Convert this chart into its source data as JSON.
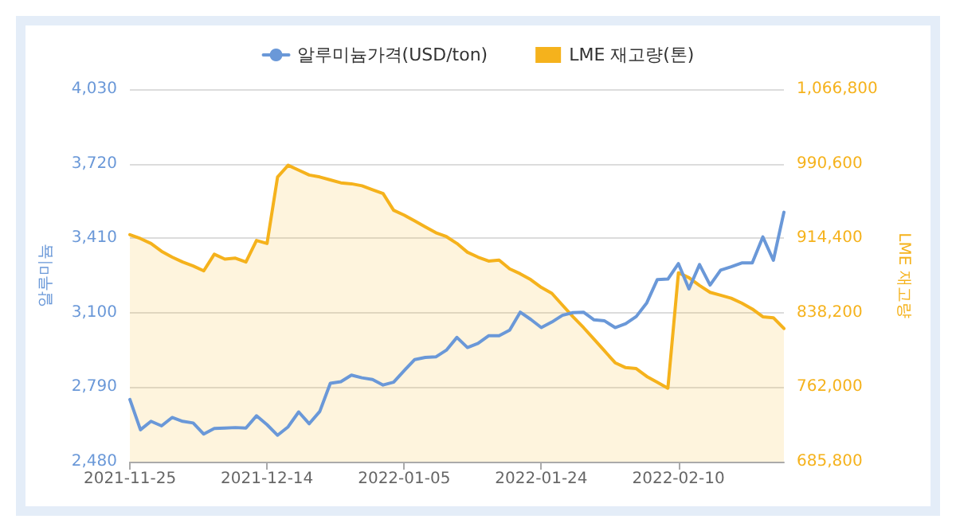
{
  "chart_data": {
    "type": "line",
    "ylabel": "알루미늄",
    "y2label": "LME 재고량",
    "categories": [
      "2021-11-25",
      null,
      null,
      null,
      null,
      null,
      null,
      null,
      null,
      null,
      null,
      null,
      null,
      "2021-12-14",
      null,
      null,
      null,
      null,
      null,
      null,
      null,
      null,
      null,
      null,
      null,
      null,
      "2022-01-05",
      null,
      null,
      null,
      null,
      null,
      null,
      null,
      null,
      null,
      null,
      null,
      null,
      "2022-01-24",
      null,
      null,
      null,
      null,
      null,
      null,
      null,
      null,
      null,
      null,
      null,
      null,
      "2022-02-10",
      null,
      null,
      null,
      null,
      null,
      null,
      null,
      null,
      null,
      null
    ],
    "series": [
      {
        "name": "알루미늄가격(USD/ton)",
        "type": "line",
        "color": "#6a98d8",
        "values": [
          2739,
          2613,
          2648,
          2629,
          2664,
          2648,
          2641,
          2595,
          2618,
          2620,
          2622,
          2620,
          2671,
          2634,
          2590,
          2625,
          2687,
          2638,
          2689,
          2806,
          2813,
          2840,
          2829,
          2822,
          2799,
          2811,
          2859,
          2905,
          2914,
          2916,
          2944,
          2997,
          2955,
          2972,
          3004,
          3004,
          3027,
          3102,
          3072,
          3038,
          3061,
          3089,
          3100,
          3102,
          3070,
          3066,
          3038,
          3054,
          3084,
          3141,
          3238,
          3240,
          3304,
          3199,
          3300,
          3215,
          3277,
          3291,
          3307,
          3307,
          3415,
          3318,
          3518
        ]
      },
      {
        "name": "LME 재고량(톤)",
        "type": "area",
        "axis": "y2",
        "color": "#f5b21c",
        "values": [
          918000,
          914000,
          909000,
          901000,
          895000,
          890000,
          886000,
          881000,
          898000,
          893000,
          894000,
          890000,
          912000,
          909000,
          977000,
          989000,
          984000,
          979000,
          977000,
          974000,
          971000,
          970000,
          968000,
          964000,
          960000,
          943000,
          938000,
          932000,
          926000,
          920000,
          916000,
          909000,
          900000,
          895000,
          891000,
          892000,
          883000,
          878000,
          872000,
          864000,
          858000,
          846000,
          834000,
          823000,
          811000,
          799000,
          787000,
          782000,
          781000,
          773000,
          767000,
          761000,
          879000,
          874000,
          866000,
          859000,
          856000,
          853000,
          848000,
          842000,
          834000,
          833000,
          822000
        ]
      }
    ],
    "ylim": [
      2480,
      4030
    ],
    "yticks": [
      {
        "value": 2480,
        "label": "2,480"
      },
      {
        "value": 2790,
        "label": "2,790"
      },
      {
        "value": 3100,
        "label": "3,100"
      },
      {
        "value": 3410,
        "label": "3,410"
      },
      {
        "value": 3720,
        "label": "3,720"
      },
      {
        "value": 4030,
        "label": "4,030"
      }
    ],
    "y2lim": [
      685800,
      1066800
    ],
    "y2ticks": [
      {
        "value": 685800,
        "label": "685,800"
      },
      {
        "value": 762000,
        "label": "762,000"
      },
      {
        "value": 838200,
        "label": "838,200"
      },
      {
        "value": 914400,
        "label": "914,400"
      },
      {
        "value": 990600,
        "label": "990,600"
      },
      {
        "value": 1066800,
        "label": "1,066,800"
      }
    ],
    "grid": "y",
    "legend": "top",
    "marker": "none",
    "line_style": "solid"
  }
}
